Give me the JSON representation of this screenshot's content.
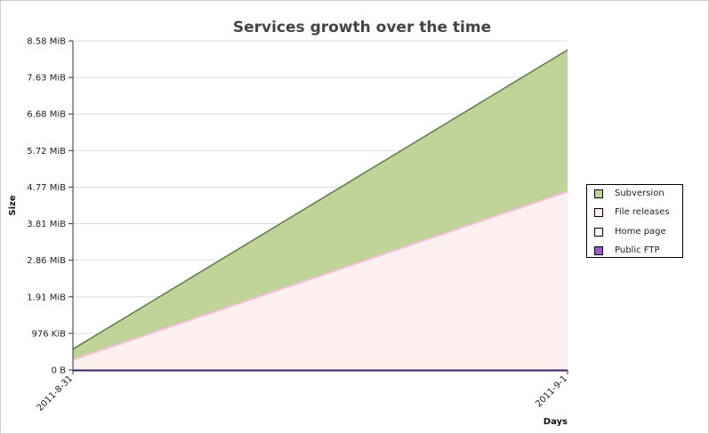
{
  "chart_data": {
    "type": "area",
    "title": "Services growth over the time",
    "xlabel": "Days",
    "ylabel": "Size",
    "x": [
      "2011-8-31",
      "2011-9-1"
    ],
    "y_ticks": [
      "0 B",
      "976 KiB",
      "1.91 MiB",
      "2.86 MiB",
      "3.81 MiB",
      "4.77 MiB",
      "5.72 MiB",
      "6.68 MiB",
      "7.63 MiB",
      "8.58 MiB"
    ],
    "ylim": [
      0,
      9000000
    ],
    "stacked": true,
    "grid": true,
    "legend_position": "right",
    "series": [
      {
        "name": "Public FTP",
        "values": [
          0,
          0
        ],
        "color": "#9b59d0",
        "line": "#3d1f5c"
      },
      {
        "name": "Home page",
        "values": [
          0,
          0
        ],
        "color": "#fdf3e8",
        "line": "#333333"
      },
      {
        "name": "File releases",
        "values": [
          300000,
          4900000
        ],
        "color": "#fdf0ee",
        "line": "#f7bfd8"
      },
      {
        "name": "Subversion",
        "values": [
          270000,
          3850000
        ],
        "color": "#c0d49a",
        "line": "#5c7a46"
      }
    ]
  }
}
